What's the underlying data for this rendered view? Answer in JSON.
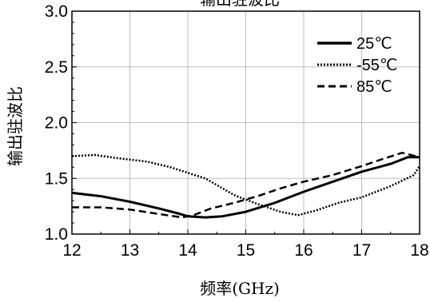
{
  "chart_data": {
    "type": "line",
    "title": "输出驻波比",
    "xlabel": "频率(GHz)",
    "ylabel": "输出驻波比",
    "xlim": [
      12,
      18
    ],
    "ylim": [
      1.0,
      3.0
    ],
    "x_ticks": [
      "12",
      "13",
      "14",
      "15",
      "16",
      "17",
      "18"
    ],
    "y_ticks": [
      "1.0",
      "1.5",
      "2.0",
      "2.5",
      "3.0"
    ],
    "grid": true,
    "legend_position": "top-right",
    "series": [
      {
        "name": "25℃",
        "style": "solid",
        "color": "#000000",
        "x": [
          12.0,
          12.5,
          13.0,
          13.5,
          13.8,
          14.0,
          14.3,
          14.6,
          15.0,
          15.5,
          16.0,
          16.5,
          17.0,
          17.5,
          17.8,
          18.0
        ],
        "y": [
          1.37,
          1.34,
          1.29,
          1.23,
          1.19,
          1.16,
          1.15,
          1.16,
          1.2,
          1.28,
          1.38,
          1.47,
          1.56,
          1.63,
          1.69,
          1.69
        ]
      },
      {
        "name": "-55℃",
        "style": "dotted",
        "color": "#000000",
        "x": [
          12.0,
          12.4,
          12.8,
          13.3,
          13.7,
          14.0,
          14.3,
          14.5,
          14.8,
          15.2,
          15.6,
          15.9,
          16.2,
          16.6,
          17.0,
          17.5,
          17.9,
          18.0
        ],
        "y": [
          1.7,
          1.71,
          1.68,
          1.65,
          1.6,
          1.55,
          1.5,
          1.44,
          1.35,
          1.27,
          1.2,
          1.17,
          1.21,
          1.28,
          1.33,
          1.43,
          1.53,
          1.61
        ]
      },
      {
        "name": "85℃",
        "style": "dashed",
        "color": "#000000",
        "x": [
          12.0,
          12.5,
          13.0,
          13.5,
          13.9,
          14.1,
          14.4,
          14.8,
          15.2,
          15.6,
          16.0,
          16.5,
          17.0,
          17.4,
          17.7,
          18.0
        ],
        "y": [
          1.24,
          1.24,
          1.22,
          1.18,
          1.15,
          1.17,
          1.23,
          1.28,
          1.34,
          1.41,
          1.47,
          1.53,
          1.61,
          1.68,
          1.73,
          1.69
        ]
      }
    ]
  }
}
